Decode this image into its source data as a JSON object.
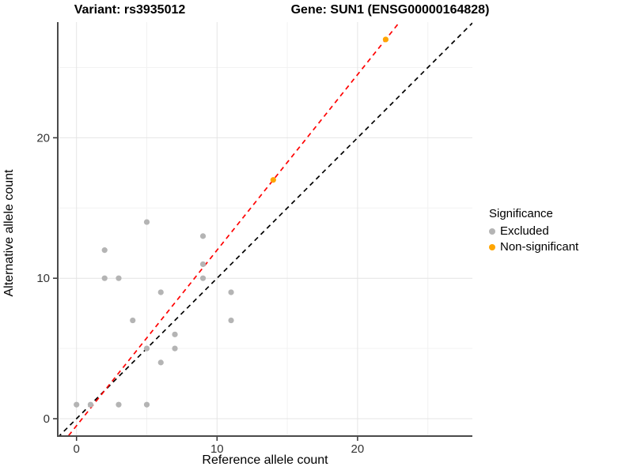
{
  "chart_data": {
    "type": "scatter",
    "title_left": "Variant: rs3935012",
    "title_right": "Gene: SUN1 (ENSG00000164828)",
    "xlabel": "Reference allele count",
    "ylabel": "Alternative allele count",
    "x_ticks": [
      0,
      10,
      20
    ],
    "y_ticks": [
      0,
      10,
      20
    ],
    "x_minor_ticks": [
      5,
      15,
      25
    ],
    "y_minor_ticks": [
      5,
      15,
      25
    ],
    "xlim": [
      -1.3,
      28.2
    ],
    "ylim": [
      -1.2,
      28.2
    ],
    "grid": "on",
    "series": [
      {
        "name": "Excluded",
        "color": "#b4b4b4",
        "points": [
          [
            0,
            1
          ],
          [
            1,
            1
          ],
          [
            3,
            1
          ],
          [
            5,
            1
          ],
          [
            2,
            10
          ],
          [
            2,
            12
          ],
          [
            3,
            10
          ],
          [
            4,
            7
          ],
          [
            5,
            5
          ],
          [
            5,
            14
          ],
          [
            6,
            4
          ],
          [
            6,
            9
          ],
          [
            7,
            5
          ],
          [
            7,
            6
          ],
          [
            9,
            10
          ],
          [
            9,
            11
          ],
          [
            9,
            13
          ],
          [
            11,
            7
          ],
          [
            11,
            9
          ]
        ]
      },
      {
        "name": "Non-significant",
        "color": "#FFA500",
        "points": [
          [
            14,
            17
          ],
          [
            22,
            27
          ]
        ]
      }
    ],
    "lines": [
      {
        "name": "identity-line",
        "slope": 1,
        "intercept": 0,
        "color": "#000000",
        "style": "dashed"
      },
      {
        "name": "fit-line",
        "slope": 1.25,
        "intercept": -0.5,
        "color": "#FF0000",
        "style": "dashed"
      }
    ],
    "legend": {
      "title": "Significance",
      "position": "right",
      "items": [
        {
          "label": "Excluded",
          "color": "#b4b4b4"
        },
        {
          "label": "Non-significant",
          "color": "#FFA500"
        }
      ]
    }
  }
}
